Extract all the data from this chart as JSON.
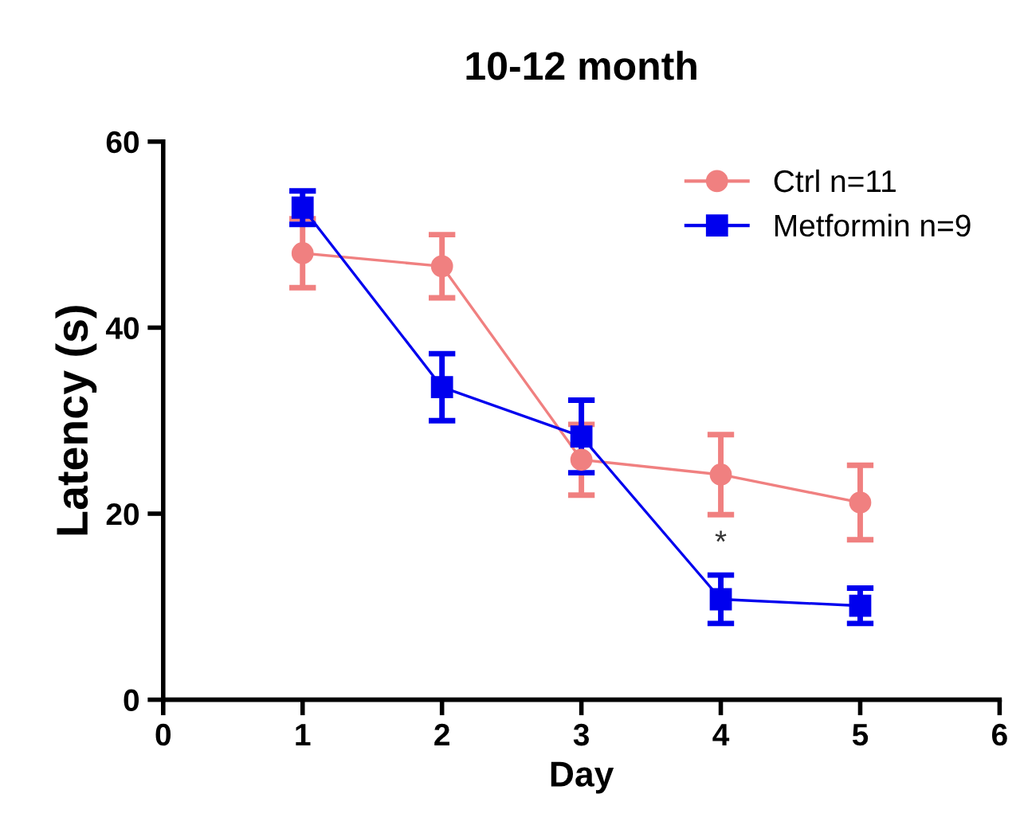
{
  "chart_data": {
    "type": "line",
    "title": "10-12 month",
    "xlabel": "Day",
    "ylabel": "Latency (s)",
    "x": [
      1,
      2,
      3,
      4,
      5
    ],
    "series": [
      {
        "name": "Ctrl n=11",
        "color": "#f08080",
        "marker": "circle",
        "values": [
          48.0,
          46.6,
          25.8,
          24.2,
          21.2
        ],
        "errors": [
          3.7,
          3.4,
          3.8,
          4.3,
          4.0
        ]
      },
      {
        "name": "Metformin n=9",
        "color": "#0000ee",
        "marker": "square",
        "values": [
          52.9,
          33.6,
          28.3,
          10.8,
          10.1
        ],
        "errors": [
          1.8,
          3.6,
          3.9,
          2.6,
          1.9
        ]
      }
    ],
    "annotations": [
      "*"
    ],
    "xlim": [
      0,
      6
    ],
    "xticks": [
      0,
      1,
      2,
      3,
      4,
      5,
      6
    ],
    "ylim": [
      0,
      60
    ],
    "yticks": [
      0,
      20,
      40,
      60
    ],
    "grid": false,
    "legend": "top right",
    "line_style": "solid"
  }
}
